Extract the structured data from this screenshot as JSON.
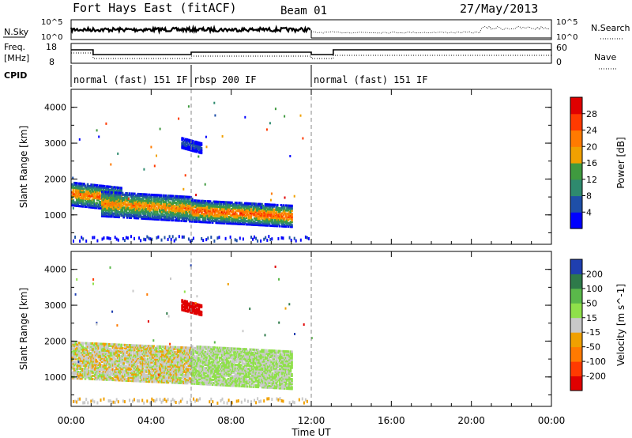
{
  "header": {
    "title": "Fort Hays East (fitACF)",
    "beam": "Beam 01",
    "date": "27/May/2013"
  },
  "panels": {
    "nsky_label": "N.Sky",
    "nsky_ticks": [
      "10^5",
      "10^0"
    ],
    "nsearch_label": "N.Search",
    "nsearch_ticks": [
      "10^5",
      "10^0"
    ],
    "freq_label_1": "Freq.",
    "freq_label_2": "[MHz]",
    "freq_ticks": [
      "18",
      "8"
    ],
    "nave_label": "Nave",
    "nave_ticks": [
      "60",
      "0"
    ],
    "cpid_label": "CPID",
    "cpid_segments": [
      {
        "label": "normal (fast) 151 IF",
        "start_h": 0,
        "end_h": 6
      },
      {
        "label": "rbsp 200 IF",
        "start_h": 6,
        "end_h": 12
      },
      {
        "label": "normal (fast) 151 IF",
        "start_h": 12,
        "end_h": 24
      }
    ]
  },
  "chart_data": [
    {
      "type": "heatmap",
      "name": "power",
      "ylabel": "Slant Range [km]",
      "yticks": [
        "1000",
        "2000",
        "3000",
        "4000"
      ],
      "ylim": [
        180,
        4500
      ],
      "colorbar_label": "Power [dB]",
      "colorbar_ticks": [
        "4",
        "8",
        "12",
        "16",
        "20",
        "24",
        "28"
      ],
      "colorbar_range": [
        0,
        32
      ],
      "colors": [
        "#0000ff",
        "#1e4fa8",
        "#2e8a6e",
        "#3f9a3f",
        "#f0a000",
        "#ff7a00",
        "#ff3a00",
        "#e00000"
      ],
      "echo_regions": [
        {
          "start_h": 0.0,
          "end_h": 2.5,
          "range_km": [
            1300,
            1950
          ],
          "peak_db": 28
        },
        {
          "start_h": 1.5,
          "end_h": 6.0,
          "range_km": [
            1000,
            1700
          ],
          "peak_db": 26
        },
        {
          "start_h": 6.0,
          "end_h": 11.0,
          "range_km": [
            850,
            1450
          ],
          "peak_db": 30
        },
        {
          "start_h": 5.5,
          "end_h": 6.5,
          "range_km": [
            2900,
            3200
          ],
          "peak_db": 8
        }
      ]
    },
    {
      "type": "heatmap",
      "name": "velocity",
      "ylabel": "Slant Range [km]",
      "yticks": [
        "1000",
        "2000",
        "3000",
        "4000"
      ],
      "ylim": [
        180,
        4500
      ],
      "colorbar_label": "Velocity [m s^-1]",
      "colorbar_ticks": [
        "200",
        "100",
        "50",
        "15",
        "-15",
        "-50",
        "-100",
        "-200"
      ],
      "colorbar_range": [
        -250,
        250
      ],
      "colors": [
        "#1f3fb0",
        "#2e7a4a",
        "#5ab84a",
        "#8fe04a",
        "#c8c8c8",
        "#f0a000",
        "#ff7a00",
        "#ff3a00",
        "#e00000"
      ],
      "echo_regions": [
        {
          "start_h": 0.0,
          "end_h": 6.0,
          "range_km": [
            1000,
            2000
          ],
          "velocity": 0
        },
        {
          "start_h": 6.0,
          "end_h": 11.0,
          "range_km": [
            850,
            1900
          ],
          "velocity": 20
        },
        {
          "start_h": 5.5,
          "end_h": 6.5,
          "range_km": [
            2900,
            3200
          ],
          "velocity": -200
        }
      ]
    }
  ],
  "xaxis": {
    "label": "Time UT",
    "ticks": [
      "00:00",
      "04:00",
      "08:00",
      "12:00",
      "16:00",
      "20:00",
      "00:00"
    ],
    "range_h": [
      0,
      24
    ]
  }
}
